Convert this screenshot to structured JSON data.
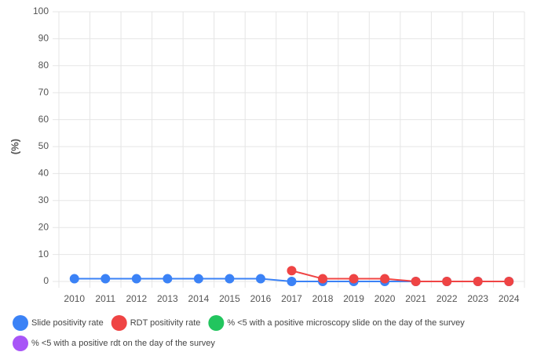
{
  "chart_data": {
    "type": "line",
    "ylabel": "(%)",
    "categories": [
      "2010",
      "2011",
      "2012",
      "2013",
      "2014",
      "2015",
      "2016",
      "2017",
      "2018",
      "2019",
      "2020",
      "2021",
      "2022",
      "2023",
      "2024"
    ],
    "series": [
      {
        "name": "Slide positivity rate",
        "color": "#3b82f6",
        "values": [
          1,
          1,
          1,
          1,
          1,
          1,
          1,
          0,
          0,
          0,
          0,
          0,
          0,
          0,
          0
        ]
      },
      {
        "name": "RDT positivity rate",
        "color": "#ef4444",
        "values": [
          null,
          null,
          null,
          null,
          null,
          null,
          null,
          4,
          1,
          1,
          1,
          0,
          0,
          0,
          0
        ]
      },
      {
        "name": "% <5 with a positive microscopy slide on the day of the survey",
        "color": "#22c55e",
        "values": [
          null,
          null,
          null,
          null,
          null,
          null,
          null,
          null,
          null,
          null,
          null,
          null,
          null,
          null,
          null
        ]
      },
      {
        "name": "% <5 with a positive rdt on the day of the survey",
        "color": "#a855f7",
        "values": [
          null,
          null,
          null,
          null,
          null,
          null,
          null,
          null,
          null,
          null,
          null,
          null,
          null,
          null,
          null
        ]
      }
    ],
    "ylim": [
      0,
      100
    ],
    "yticks": [
      0,
      10,
      20,
      30,
      40,
      50,
      60,
      70,
      80,
      90,
      100
    ],
    "grid": true,
    "legend": "bottom"
  }
}
